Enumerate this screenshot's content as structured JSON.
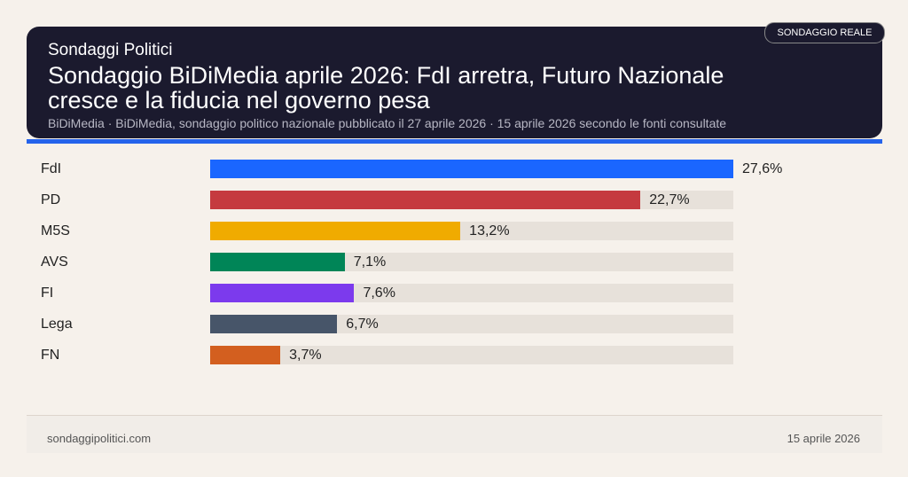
{
  "header": {
    "kicker": "Sondaggi Politici",
    "title": "Sondaggio BiDiMedia aprile 2026: FdI arretra, Futuro Nazionale cresce e la fiducia nel governo pesa",
    "subtitle": "BiDiMedia · BiDiMedia, sondaggio politico nazionale pubblicato il 27 aprile 2026 · 15 aprile 2026 secondo le fonti consultate",
    "badge": "SONDAGGIO REALE"
  },
  "chart_data": {
    "type": "bar",
    "orientation": "horizontal",
    "categories": [
      "FdI",
      "PD",
      "M5S",
      "AVS",
      "FI",
      "Lega",
      "FN"
    ],
    "values": [
      27.6,
      22.7,
      13.2,
      7.1,
      7.6,
      6.7,
      3.7
    ],
    "labels": [
      "27,6%",
      "22,7%",
      "13,2%",
      "7,1%",
      "7,6%",
      "6,7%",
      "3,7%"
    ],
    "colors": [
      "#1a66ff",
      "#c53a3f",
      "#f0ab00",
      "#008557",
      "#7c3aed",
      "#475569",
      "#d35f1f"
    ],
    "xlim": [
      0,
      27.6
    ],
    "grid": false
  },
  "footer": {
    "site": "sondaggipolitici.com",
    "date": "15 aprile 2026"
  }
}
